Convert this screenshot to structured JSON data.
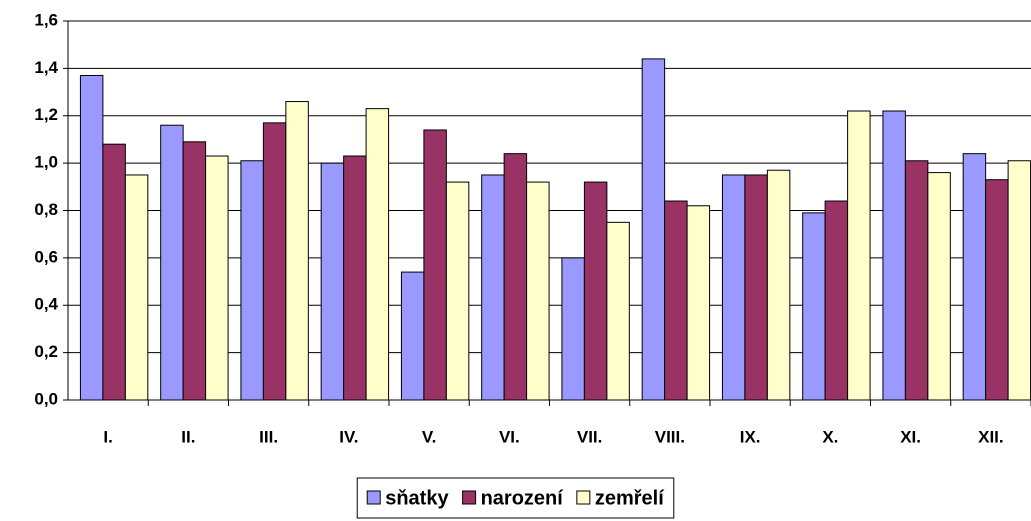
{
  "chart_data": {
    "type": "bar",
    "categories": [
      "I.",
      "II.",
      "III.",
      "IV.",
      "V.",
      "VI.",
      "VII.",
      "VIII.",
      "IX.",
      "X.",
      "XI.",
      "XII."
    ],
    "series": [
      {
        "name": "sňatky",
        "color": "#9999ff",
        "values": [
          1.37,
          1.16,
          1.01,
          1.0,
          0.54,
          0.95,
          0.6,
          1.44,
          0.95,
          0.79,
          1.22,
          1.04
        ]
      },
      {
        "name": "narození",
        "color": "#993366",
        "values": [
          1.08,
          1.09,
          1.17,
          1.03,
          1.14,
          1.04,
          0.92,
          0.84,
          0.95,
          0.84,
          1.01,
          0.93
        ]
      },
      {
        "name": "zemřelí",
        "color": "#ffffcc",
        "values": [
          0.95,
          1.03,
          1.26,
          1.23,
          0.92,
          0.92,
          0.75,
          0.82,
          0.97,
          1.22,
          0.96,
          1.01
        ]
      }
    ],
    "ylim": [
      0,
      1.6
    ],
    "yticks": [
      {
        "value": 0,
        "label": "0,0"
      },
      {
        "value": 0.2,
        "label": "0,2"
      },
      {
        "value": 0.4,
        "label": "0,4"
      },
      {
        "value": 0.6,
        "label": "0,6"
      },
      {
        "value": 0.8,
        "label": "0,8"
      },
      {
        "value": 1.0,
        "label": "1,0"
      },
      {
        "value": 1.2,
        "label": "1,2"
      },
      {
        "value": 1.4,
        "label": "1,4"
      },
      {
        "value": 1.6,
        "label": "1,6"
      }
    ],
    "grid": true,
    "legend": "bottom"
  }
}
